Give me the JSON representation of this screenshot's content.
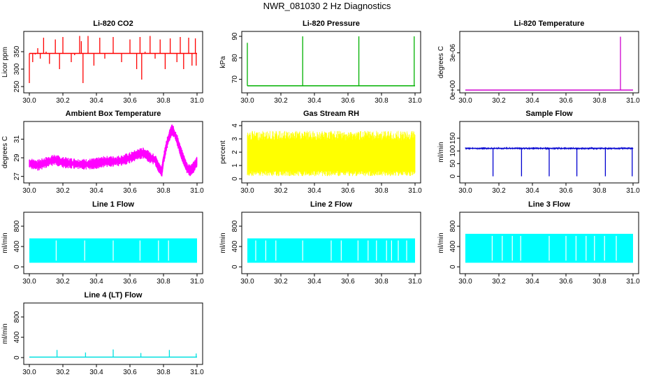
{
  "page_title": "NWR_081030  2 Hz Diagnostics",
  "chart_data": [
    {
      "type": "line",
      "title": "Li-820 CO2",
      "ylabel": "Licor ppm",
      "color": "#ff0000",
      "xlim": [
        30.0,
        31.0
      ],
      "ylim": [
        240,
        400
      ],
      "yticks": [
        250,
        300,
        350
      ],
      "xticks": [
        "30.0",
        "30.2",
        "30.4",
        "30.6",
        "30.8",
        "31.0"
      ],
      "baseline": 345,
      "x": [
        30.0,
        30.02,
        30.035,
        30.05,
        30.065,
        30.085,
        30.1,
        30.12,
        30.155,
        30.18,
        30.2,
        30.25,
        30.27,
        30.3,
        30.31,
        30.32,
        30.35,
        30.385,
        30.42,
        30.45,
        30.5,
        30.55,
        30.6,
        30.64,
        30.66,
        30.67,
        30.69,
        30.72,
        30.75,
        30.78,
        30.81,
        30.84,
        30.88,
        30.9,
        30.92,
        30.95,
        30.97,
        30.99,
        30.995
      ],
      "y": [
        260,
        320,
        342,
        360,
        330,
        390,
        350,
        315,
        385,
        300,
        392,
        320,
        340,
        395,
        380,
        260,
        395,
        310,
        390,
        330,
        392,
        320,
        385,
        300,
        392,
        270,
        350,
        395,
        330,
        385,
        300,
        388,
        320,
        392,
        300,
        390,
        310,
        388,
        310
      ]
    },
    {
      "type": "line",
      "title": "Li-820 Pressure",
      "ylabel": "kPa",
      "color": "#00b000",
      "xlim": [
        30.0,
        31.0
      ],
      "ylim": [
        65,
        91
      ],
      "yticks": [
        70,
        80,
        90
      ],
      "xticks": [
        "30.0",
        "30.2",
        "30.4",
        "30.6",
        "30.8",
        "31.0"
      ],
      "baseline": 67,
      "x": [
        30.0,
        30.33,
        30.665,
        30.995
      ],
      "y": [
        87,
        90,
        90,
        90
      ]
    },
    {
      "type": "line",
      "title": "Li-820 Temperature",
      "ylabel": "degrees C",
      "color": "#d000d0",
      "xlim": [
        30.0,
        31.0
      ],
      "ylim": [
        0,
        4.5e-06
      ],
      "yticks": [
        "0e+00",
        "3e-06"
      ],
      "xticks": [
        "30.0",
        "30.2",
        "30.4",
        "30.6",
        "30.8",
        "31.0"
      ],
      "baseline": 0,
      "x": [
        30.925
      ],
      "y": [
        4.3e-06
      ]
    },
    {
      "type": "area",
      "title": "Ambient Box Temperature",
      "ylabel": "degrees C",
      "color": "#ff00ff",
      "xlim": [
        30.0,
        31.0
      ],
      "ylim": [
        26.6,
        32.6
      ],
      "yticks": [
        27,
        29,
        31
      ],
      "xticks": [
        "30.0",
        "30.2",
        "30.4",
        "30.6",
        "30.8",
        "31.0"
      ],
      "x": [
        30.0,
        30.05,
        30.1,
        30.15,
        30.2,
        30.25,
        30.3,
        30.35,
        30.4,
        30.45,
        30.5,
        30.55,
        30.6,
        30.65,
        30.68,
        30.7,
        30.72,
        30.75,
        30.77,
        30.79,
        30.8,
        30.82,
        30.84,
        30.85,
        30.86,
        30.88,
        30.9,
        30.92,
        30.94,
        30.96,
        30.98,
        31.0
      ],
      "y": [
        28.4,
        28.2,
        28.5,
        28.8,
        28.5,
        28.4,
        28.3,
        28.3,
        28.4,
        28.6,
        28.6,
        28.7,
        29.0,
        29.4,
        29.5,
        29.3,
        29.0,
        28.8,
        28.0,
        27.5,
        28.8,
        30.5,
        31.6,
        32.0,
        31.8,
        31.0,
        29.8,
        28.8,
        27.9,
        27.6,
        28.0,
        28.6
      ],
      "band": 0.5
    },
    {
      "type": "area",
      "title": "Gas Stream RH",
      "ylabel": "percent",
      "color": "#ffff00",
      "xlim": [
        30.0,
        31.0
      ],
      "ylim": [
        -0.1,
        4.1
      ],
      "yticks": [
        0,
        1,
        2,
        3,
        4
      ],
      "xticks": [
        "30.0",
        "30.2",
        "30.4",
        "30.6",
        "30.8",
        "31.0"
      ],
      "low": 0.6,
      "high": 3.6
    },
    {
      "type": "line",
      "title": "Sample Flow",
      "ylabel": "ml/min",
      "color": "#0000d0",
      "xlim": [
        30.0,
        31.0
      ],
      "ylim": [
        -15,
        205
      ],
      "yticks": [
        0,
        50,
        100,
        150
      ],
      "xticks": [
        "30.0",
        "30.2",
        "30.4",
        "30.6",
        "30.8",
        "31.0"
      ],
      "baseline": 110,
      "x": [
        30.165,
        30.335,
        30.5,
        30.665,
        30.835,
        30.995
      ],
      "y": [
        0,
        0,
        0,
        0,
        0,
        0
      ]
    },
    {
      "type": "area",
      "title": "Line 1 Flow",
      "ylabel": "ml/min",
      "color": "#00ffff",
      "xlim": [
        30.0,
        31.0
      ],
      "ylim": [
        -80,
        1020
      ],
      "yticks": [
        0,
        400,
        800
      ],
      "xticks": [
        "30.0",
        "30.2",
        "30.4",
        "30.6",
        "30.8",
        "31.0"
      ],
      "low": 80,
      "high": 560,
      "x": [
        30.16,
        30.33,
        30.5,
        30.66,
        30.77,
        30.83
      ]
    },
    {
      "type": "area",
      "title": "Line 2 Flow",
      "ylabel": "ml/min",
      "color": "#00ffff",
      "xlim": [
        30.0,
        31.0
      ],
      "ylim": [
        -80,
        1020
      ],
      "yticks": [
        0,
        400,
        800
      ],
      "xticks": [
        "30.0",
        "30.2",
        "30.4",
        "30.6",
        "30.8",
        "31.0"
      ],
      "low": 80,
      "high": 560,
      "x": [
        30.05,
        30.11,
        30.17,
        30.33,
        30.5,
        30.56,
        30.66,
        30.72,
        30.77,
        30.83,
        30.86,
        30.9,
        30.95
      ]
    },
    {
      "type": "area",
      "title": "Line 3 Flow",
      "ylabel": "ml/min",
      "color": "#00ffff",
      "xlim": [
        30.0,
        31.0
      ],
      "ylim": [
        -80,
        1020
      ],
      "yticks": [
        0,
        400,
        800
      ],
      "xticks": [
        "30.0",
        "30.2",
        "30.4",
        "30.6",
        "30.8",
        "31.0"
      ],
      "low": 80,
      "high": 650,
      "x": [
        30.16,
        30.22,
        30.28,
        30.33,
        30.5,
        30.6,
        30.66,
        30.72,
        30.77,
        30.83,
        30.9
      ]
    },
    {
      "type": "line",
      "title": "Line 4 (LT) Flow",
      "ylabel": "ml/min",
      "color": "#00e0e0",
      "xlim": [
        30.0,
        31.0
      ],
      "ylim": [
        -80,
        1020
      ],
      "yticks": [
        0,
        400,
        800
      ],
      "xticks": [
        "30.0",
        "30.2",
        "30.4",
        "30.6",
        "30.8",
        "31.0"
      ],
      "baseline": 10,
      "x": [
        30.165,
        30.335,
        30.5,
        30.665,
        30.835,
        30.995
      ],
      "y": [
        150,
        100,
        160,
        90,
        150,
        80
      ]
    }
  ]
}
